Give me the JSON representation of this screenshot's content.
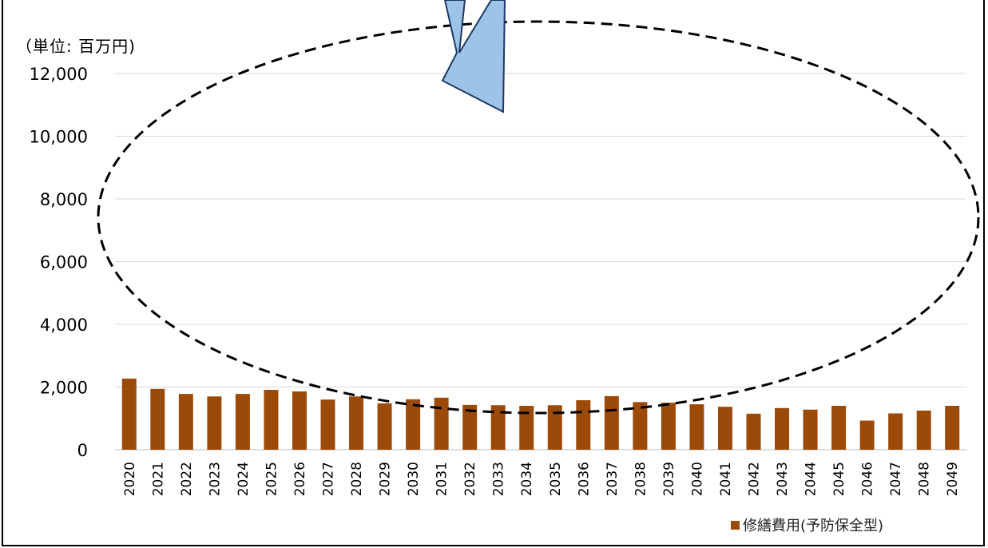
{
  "chart_data": {
    "type": "bar",
    "unit_label": "（単位: 百万円)",
    "categories": [
      "2020",
      "2021",
      "2022",
      "2023",
      "2024",
      "2025",
      "2026",
      "2027",
      "2028",
      "2029",
      "2030",
      "2031",
      "2032",
      "2033",
      "2034",
      "2035",
      "2036",
      "2037",
      "2038",
      "2039",
      "2040",
      "2041",
      "2042",
      "2043",
      "2044",
      "2045",
      "2046",
      "2047",
      "2048",
      "2049"
    ],
    "series": [
      {
        "name": "修繕費用(予防保全型)",
        "color": "#9c4a0a",
        "values": [
          2270,
          1940,
          1780,
          1700,
          1780,
          1910,
          1860,
          1600,
          1700,
          1480,
          1610,
          1660,
          1430,
          1420,
          1400,
          1420,
          1580,
          1710,
          1520,
          1500,
          1450,
          1370,
          1150,
          1330,
          1280,
          1400,
          930,
          1160,
          1250,
          1400
        ]
      }
    ],
    "y_ticks": [
      "0",
      "2,000",
      "4,000",
      "6,000",
      "8,000",
      "10,000",
      "12,000"
    ],
    "ylim": [
      0,
      12000
    ],
    "grid": true,
    "legend_position": "bottom-right",
    "annotations": {
      "ellipse": "dashed-ellipse",
      "arrow": "down-arrow",
      "arrow_fill": "#9dc3e6",
      "arrow_stroke": "#1f3864"
    }
  }
}
